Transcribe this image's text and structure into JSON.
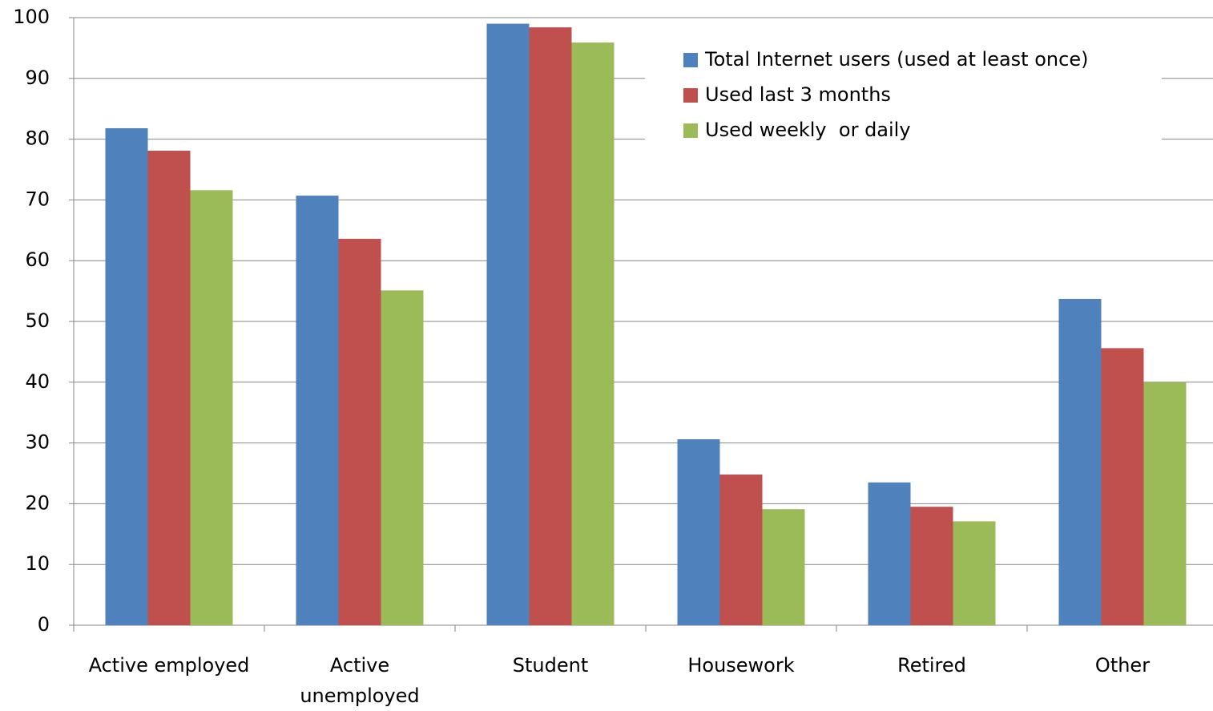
{
  "chart_data": {
    "type": "bar",
    "categories": [
      "Active employed",
      "Active unemployed",
      "Student",
      "Housework",
      "Retired",
      "Other"
    ],
    "series": [
      {
        "name": "Total Internet users (used at least once)",
        "color": "#4f81bd",
        "values": [
          81.8,
          70.7,
          99.0,
          30.6,
          23.5,
          53.7
        ]
      },
      {
        "name": "Used last 3 months",
        "color": "#c0504d",
        "values": [
          78.1,
          63.6,
          98.4,
          24.8,
          19.5,
          45.6
        ]
      },
      {
        "name": "Used weekly  or daily",
        "color": "#9bbb59",
        "values": [
          71.6,
          55.1,
          95.9,
          19.1,
          17.1,
          40.0
        ]
      }
    ],
    "ylim": [
      0,
      100
    ],
    "yticks": [
      0,
      10,
      20,
      30,
      40,
      50,
      60,
      70,
      80,
      90,
      100
    ],
    "grid": true,
    "legend": "top-right"
  }
}
